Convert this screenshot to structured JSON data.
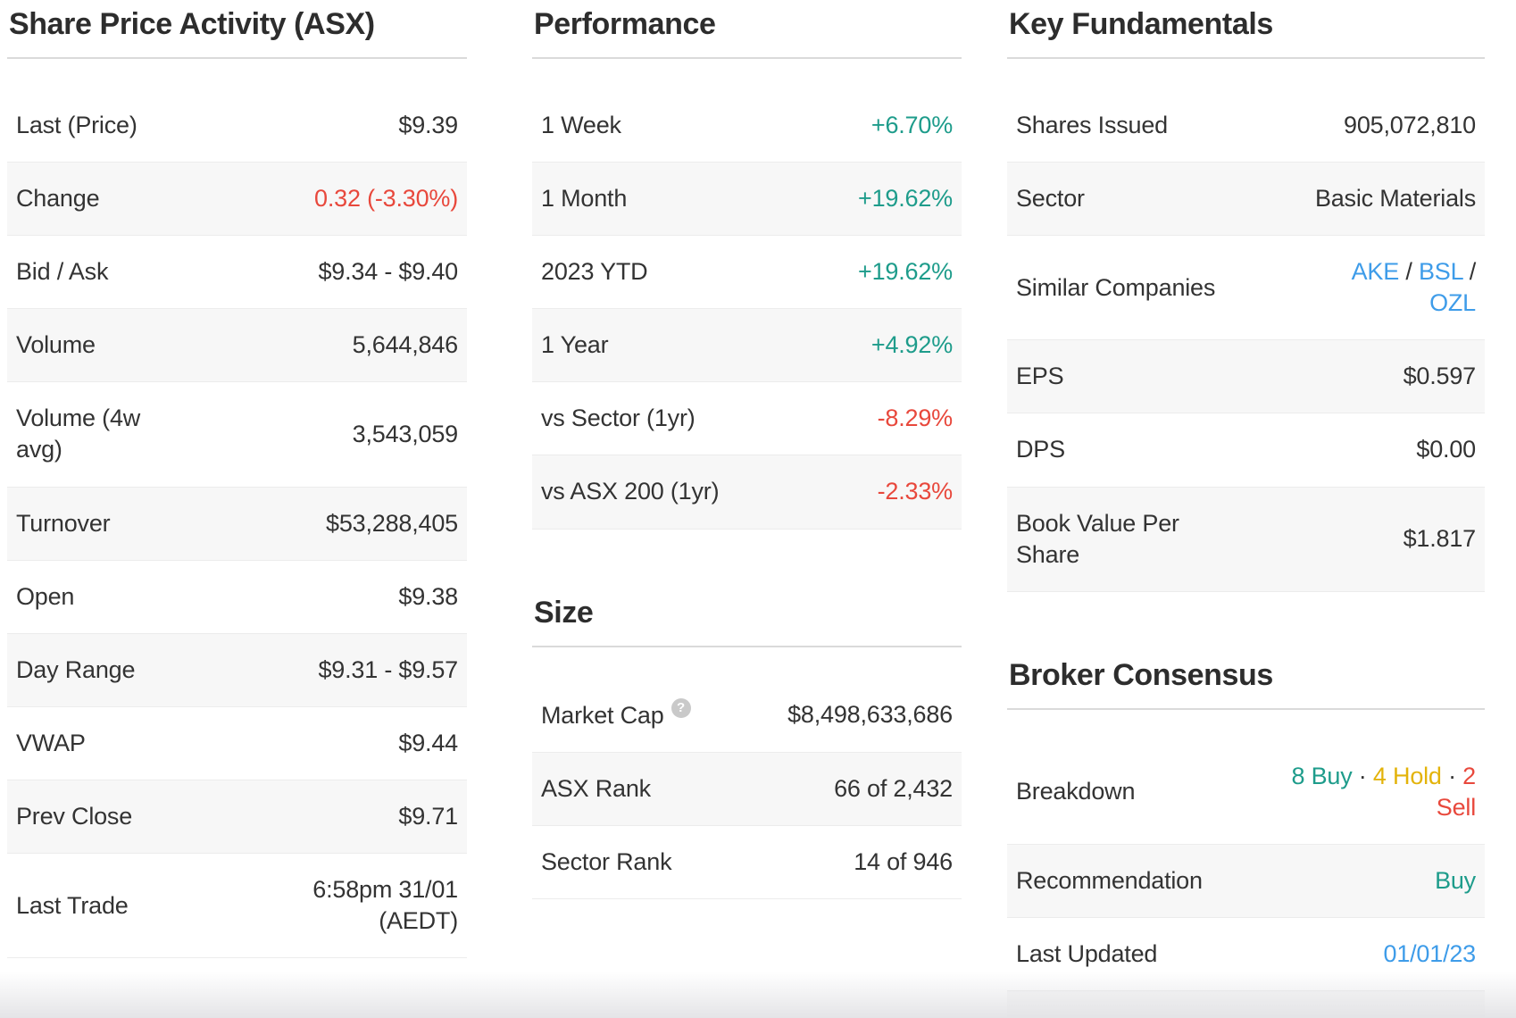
{
  "colors": {
    "positive": "#1e9c8b",
    "negative": "#e8483c",
    "hold": "#e3b30a",
    "link": "#3e9ce9",
    "text": "#333333",
    "heading": "#2d2d2d",
    "alt_row_bg": "#f7f7f7",
    "row_border": "#ececec",
    "heading_divider": "#dadada",
    "help_icon_bg": "#c9c9c9"
  },
  "icons": {
    "help": "?"
  },
  "columns": [
    {
      "sections": [
        {
          "title": "Share Price Activity (ASX)",
          "rows": [
            {
              "label": [
                "Last (Price)"
              ],
              "value": [
                [
                  {
                    "text": "$9.39"
                  }
                ]
              ]
            },
            {
              "label": [
                "Change"
              ],
              "value": [
                [
                  {
                    "text": "0.32 (-3.30%)",
                    "color": "negative"
                  }
                ]
              ]
            },
            {
              "label": [
                "Bid / Ask"
              ],
              "value": [
                [
                  {
                    "text": "$9.34 - $9.40"
                  }
                ]
              ]
            },
            {
              "label": [
                "Volume"
              ],
              "value": [
                [
                  {
                    "text": "5,644,846"
                  }
                ]
              ]
            },
            {
              "label": [
                "Volume (4w",
                "avg)"
              ],
              "value": [
                [
                  {
                    "text": "3,543,059"
                  }
                ]
              ]
            },
            {
              "label": [
                "Turnover"
              ],
              "value": [
                [
                  {
                    "text": "$53,288,405"
                  }
                ]
              ]
            },
            {
              "label": [
                "Open"
              ],
              "value": [
                [
                  {
                    "text": "$9.38"
                  }
                ]
              ]
            },
            {
              "label": [
                "Day Range"
              ],
              "value": [
                [
                  {
                    "text": "$9.31 - $9.57"
                  }
                ]
              ]
            },
            {
              "label": [
                "VWAP"
              ],
              "value": [
                [
                  {
                    "text": "$9.44"
                  }
                ]
              ]
            },
            {
              "label": [
                "Prev Close"
              ],
              "value": [
                [
                  {
                    "text": "$9.71"
                  }
                ]
              ]
            },
            {
              "label": [
                "Last Trade"
              ],
              "value": [
                [
                  {
                    "text": "6:58pm 31/01"
                  }
                ],
                [
                  {
                    "text": "(AEDT)"
                  }
                ]
              ]
            }
          ]
        }
      ]
    },
    {
      "sections": [
        {
          "title": "Performance",
          "rows": [
            {
              "label": [
                "1 Week"
              ],
              "value": [
                [
                  {
                    "text": "+6.70%",
                    "color": "positive"
                  }
                ]
              ]
            },
            {
              "label": [
                "1 Month"
              ],
              "value": [
                [
                  {
                    "text": "+19.62%",
                    "color": "positive"
                  }
                ]
              ]
            },
            {
              "label": [
                "2023 YTD"
              ],
              "value": [
                [
                  {
                    "text": "+19.62%",
                    "color": "positive"
                  }
                ]
              ]
            },
            {
              "label": [
                "1 Year"
              ],
              "value": [
                [
                  {
                    "text": "+4.92%",
                    "color": "positive"
                  }
                ]
              ]
            },
            {
              "label": [
                "vs Sector (1yr)"
              ],
              "value": [
                [
                  {
                    "text": "-8.29%",
                    "color": "negative"
                  }
                ]
              ]
            },
            {
              "label": [
                "vs ASX 200 (1yr)"
              ],
              "value": [
                [
                  {
                    "text": "-2.33%",
                    "color": "negative"
                  }
                ]
              ]
            }
          ]
        },
        {
          "title": "Size",
          "rows": [
            {
              "label": [
                "Market Cap"
              ],
              "help_icon": true,
              "value": [
                [
                  {
                    "text": "$8,498,633,686"
                  }
                ]
              ]
            },
            {
              "label": [
                "ASX Rank"
              ],
              "value": [
                [
                  {
                    "text": "66 of 2,432"
                  }
                ]
              ]
            },
            {
              "label": [
                "Sector Rank"
              ],
              "value": [
                [
                  {
                    "text": "14 of 946"
                  }
                ]
              ]
            }
          ]
        }
      ]
    },
    {
      "sections": [
        {
          "title": "Key Fundamentals",
          "rows": [
            {
              "label": [
                "Shares Issued"
              ],
              "value": [
                [
                  {
                    "text": "905,072,810"
                  }
                ]
              ]
            },
            {
              "label": [
                "Sector"
              ],
              "value": [
                [
                  {
                    "text": "Basic Materials"
                  }
                ]
              ]
            },
            {
              "label": [
                "Similar Companies"
              ],
              "value": [
                [
                  {
                    "text": "AKE",
                    "color": "link",
                    "link": true
                  },
                  {
                    "text": " / "
                  },
                  {
                    "text": "BSL",
                    "color": "link",
                    "link": true
                  },
                  {
                    "text": " /"
                  }
                ],
                [
                  {
                    "text": "OZL",
                    "color": "link",
                    "link": true
                  }
                ]
              ]
            },
            {
              "label": [
                "EPS"
              ],
              "value": [
                [
                  {
                    "text": "$0.597"
                  }
                ]
              ]
            },
            {
              "label": [
                "DPS"
              ],
              "value": [
                [
                  {
                    "text": "$0.00"
                  }
                ]
              ]
            },
            {
              "label": [
                "Book Value Per",
                "Share"
              ],
              "value": [
                [
                  {
                    "text": "$1.817"
                  }
                ]
              ]
            }
          ]
        },
        {
          "title": "Broker Consensus",
          "rows": [
            {
              "label": [
                "Breakdown"
              ],
              "value": [
                [
                  {
                    "text": "8 Buy",
                    "color": "positive"
                  },
                  {
                    "text": " · "
                  },
                  {
                    "text": "4 Hold",
                    "color": "hold"
                  },
                  {
                    "text": " · "
                  },
                  {
                    "text": "2",
                    "color": "negative"
                  }
                ],
                [
                  {
                    "text": "Sell",
                    "color": "negative"
                  }
                ]
              ]
            },
            {
              "label": [
                "Recommendation"
              ],
              "value": [
                [
                  {
                    "text": "Buy",
                    "color": "positive"
                  }
                ]
              ]
            },
            {
              "label": [
                "Last Updated"
              ],
              "value": [
                [
                  {
                    "text": "01/01/23",
                    "color": "link",
                    "link": true
                  }
                ]
              ]
            },
            {
              "label": [
                ""
              ],
              "filler": true,
              "value": [
                [
                  {
                    "text": ""
                  }
                ]
              ]
            }
          ]
        }
      ]
    }
  ]
}
